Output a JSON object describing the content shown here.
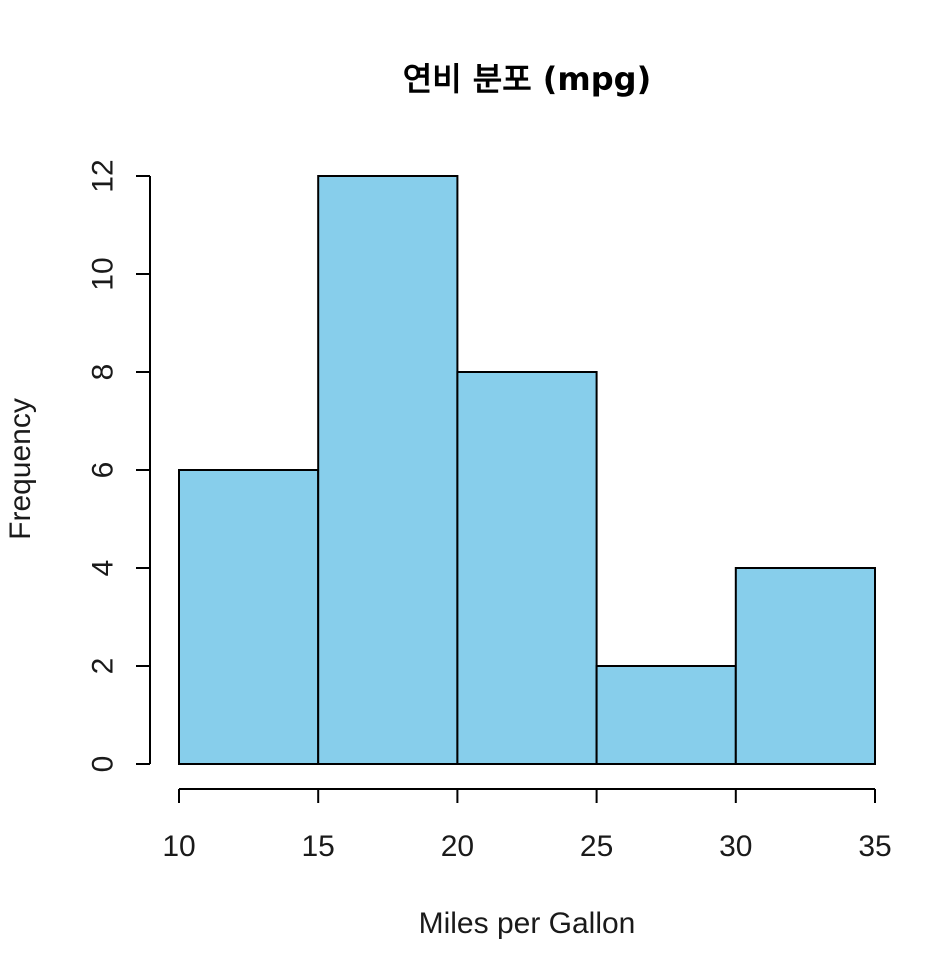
{
  "chart_data": {
    "type": "bar",
    "subtype": "histogram",
    "title": "연비 분포 (mpg)",
    "xlabel": "Miles per Gallon",
    "ylabel": "Frequency",
    "bins": [
      {
        "start": 10,
        "end": 15,
        "count": 6
      },
      {
        "start": 15,
        "end": 20,
        "count": 12
      },
      {
        "start": 20,
        "end": 25,
        "count": 8
      },
      {
        "start": 25,
        "end": 30,
        "count": 2
      },
      {
        "start": 30,
        "end": 35,
        "count": 4
      }
    ],
    "xlim": [
      10,
      35
    ],
    "ylim": [
      0,
      12
    ],
    "x_ticks": [
      "10",
      "15",
      "20",
      "25",
      "30",
      "35"
    ],
    "y_ticks": [
      "0",
      "2",
      "4",
      "6",
      "8",
      "10",
      "12"
    ],
    "bar_color": "#87CEEB",
    "edge_color": "#000000",
    "grid": false,
    "legend": "none"
  }
}
